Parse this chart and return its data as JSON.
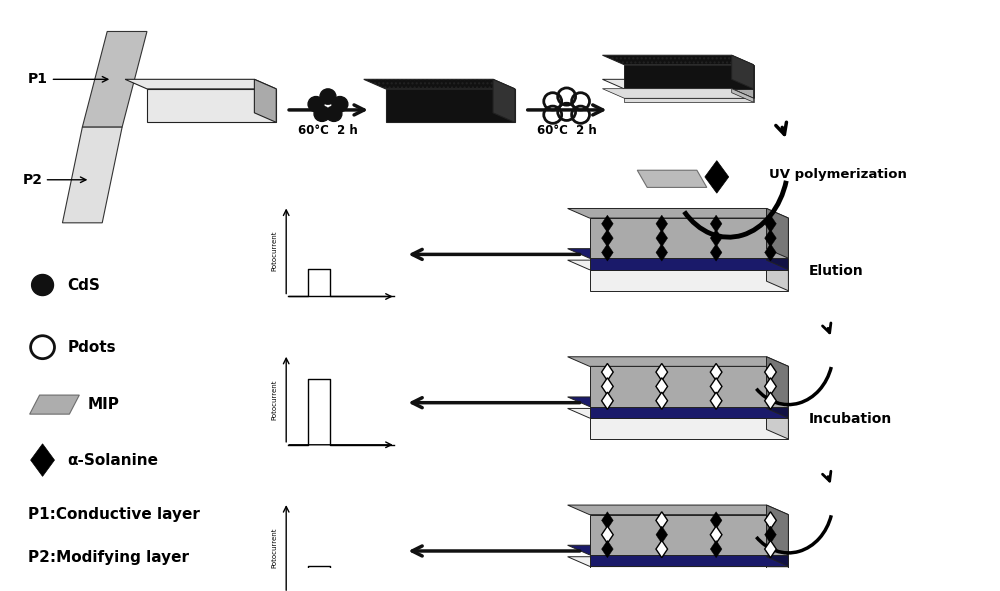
{
  "bg_color": "#ffffff",
  "fig_width": 10.0,
  "fig_height": 5.91,
  "process_labels": [
    "60°C  2 h",
    "60°C  2 h"
  ],
  "p1_label": "P1:Conductive layer",
  "p2_label": "P2:Modifying layer",
  "blue_stripe": "#3a3a9a",
  "uv_label": "UV polymerization",
  "elution_label": "Elution",
  "incubation_label": "Incubation",
  "photocurrent_label": "Potocurrent",
  "legend_cds": "CdS",
  "legend_pdots": "Pdots",
  "legend_mip": "MIP",
  "legend_solanine": "α-Solanine"
}
